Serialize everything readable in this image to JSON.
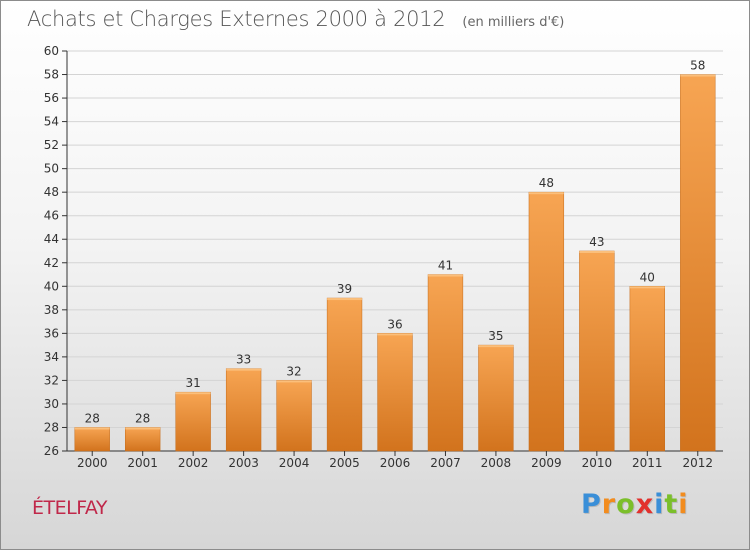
{
  "title": "Achats et Charges Externes 2000 à 2012",
  "unit": "(en milliers d'€)",
  "commune": "ÉTELFAY",
  "brand": {
    "text": "Proxiti",
    "letters": [
      {
        "ch": "P",
        "color": "#3a8fd8"
      },
      {
        "ch": "r",
        "color": "#f28c1e"
      },
      {
        "ch": "o",
        "color": "#7bbf2a"
      },
      {
        "ch": "x",
        "color": "#e2312d"
      },
      {
        "ch": "i",
        "color": "#3a8fd8"
      },
      {
        "ch": "t",
        "color": "#7bbf2a"
      },
      {
        "ch": "i",
        "color": "#f28c1e"
      }
    ]
  },
  "colors": {
    "bar_light": "#f7a553",
    "bar_dark": "#d2731d",
    "grid": "#d4d4d4",
    "axis": "#333333",
    "text": "#333333"
  },
  "chart_data": {
    "type": "bar",
    "categories": [
      "2000",
      "2001",
      "2002",
      "2003",
      "2004",
      "2005",
      "2006",
      "2007",
      "2008",
      "2009",
      "2010",
      "2011",
      "2012"
    ],
    "values": [
      28,
      28,
      31,
      33,
      32,
      39,
      36,
      41,
      35,
      48,
      43,
      40,
      58
    ],
    "ylim": [
      26,
      60
    ],
    "ytick_step": 2,
    "grid": true,
    "data_labels": true,
    "legend": "none"
  }
}
